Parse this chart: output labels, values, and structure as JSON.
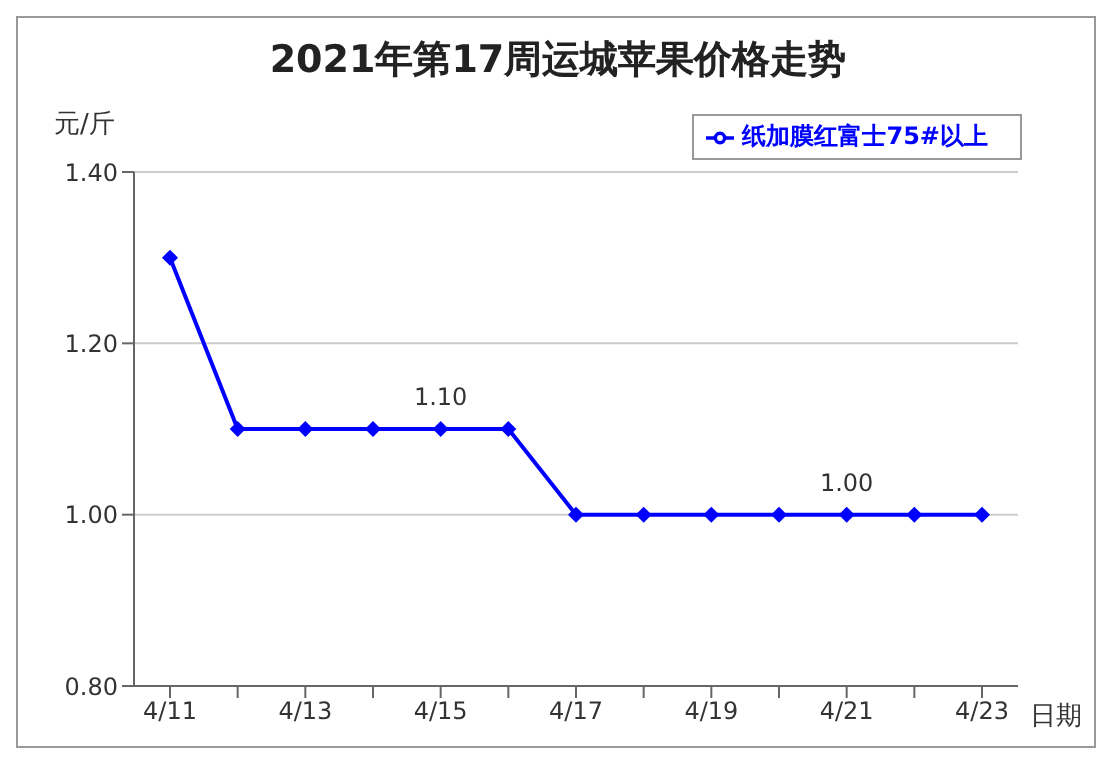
{
  "chart_data": {
    "type": "line",
    "title": "2021年第17周运城苹果价格走势",
    "ylabel": "元/斤",
    "xlabel": "日期",
    "categories": [
      "4/11",
      null,
      "4/13",
      null,
      "4/15",
      null,
      "4/17",
      null,
      "4/19",
      null,
      "4/21",
      null,
      "4/23"
    ],
    "series": [
      {
        "name": "纸加膜红富士75#以上",
        "color": "#0000ff",
        "values": [
          1.3,
          1.1,
          1.1,
          1.1,
          1.1,
          1.1,
          1.0,
          1.0,
          1.0,
          1.0,
          1.0,
          1.0,
          1.0
        ]
      }
    ],
    "ylim": [
      0.8,
      1.4
    ],
    "yticks": [
      {
        "value": 0.8,
        "label": "0.80"
      },
      {
        "value": 1.0,
        "label": "1.00"
      },
      {
        "value": 1.2,
        "label": "1.20"
      },
      {
        "value": 1.4,
        "label": "1.40"
      }
    ],
    "annotations": [
      {
        "text": "1.10",
        "x": "4/15",
        "y": 1.1
      },
      {
        "text": "1.00",
        "x": "4/21",
        "y": 1.0
      }
    ],
    "grid": "y",
    "legend": "top right",
    "marker": "diamond",
    "line_style": "solid"
  }
}
